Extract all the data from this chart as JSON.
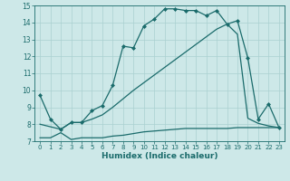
{
  "xlabel": "Humidex (Indice chaleur)",
  "bg_color": "#cde8e8",
  "line_color": "#1a6b6b",
  "grid_color": "#aad0d0",
  "xlim": [
    -0.5,
    23.5
  ],
  "ylim": [
    7,
    15
  ],
  "yticks": [
    7,
    8,
    9,
    10,
    11,
    12,
    13,
    14,
    15
  ],
  "xticks": [
    0,
    1,
    2,
    3,
    4,
    5,
    6,
    7,
    8,
    9,
    10,
    11,
    12,
    13,
    14,
    15,
    16,
    17,
    18,
    19,
    20,
    21,
    22,
    23
  ],
  "series": [
    {
      "x": [
        0,
        1,
        2,
        3,
        4,
        5,
        6,
        7,
        8,
        9,
        10,
        11,
        12,
        13,
        14,
        15,
        16,
        17,
        18,
        19,
        20,
        21,
        22,
        23
      ],
      "y": [
        7.2,
        7.2,
        7.5,
        7.1,
        7.2,
        7.2,
        7.2,
        7.3,
        7.35,
        7.45,
        7.55,
        7.6,
        7.65,
        7.7,
        7.75,
        7.75,
        7.75,
        7.75,
        7.75,
        7.8,
        7.8,
        7.8,
        7.8,
        7.8
      ],
      "marker": false,
      "lw": 0.9
    },
    {
      "x": [
        0,
        1,
        2,
        3,
        4,
        5,
        6,
        7,
        8,
        9,
        10,
        11,
        12,
        13,
        14,
        15,
        16,
        17,
        18,
        19,
        20,
        21,
        22,
        23
      ],
      "y": [
        9.7,
        8.3,
        7.7,
        8.1,
        8.1,
        8.8,
        9.1,
        10.3,
        12.6,
        12.5,
        13.8,
        14.2,
        14.8,
        14.8,
        14.7,
        14.7,
        14.4,
        14.7,
        13.9,
        14.1,
        11.9,
        8.3,
        9.2,
        7.8
      ],
      "marker": true,
      "lw": 0.9
    },
    {
      "x": [
        0,
        2,
        3,
        4,
        5,
        6,
        7,
        8,
        9,
        10,
        11,
        12,
        13,
        14,
        15,
        16,
        17,
        18,
        19,
        20,
        21,
        22,
        23
      ],
      "y": [
        8.0,
        7.7,
        8.1,
        8.1,
        8.3,
        8.55,
        9.0,
        9.5,
        10.0,
        10.45,
        10.9,
        11.35,
        11.8,
        12.25,
        12.7,
        13.15,
        13.6,
        13.9,
        13.3,
        8.35,
        8.05,
        7.9,
        7.8
      ],
      "marker": false,
      "lw": 0.9
    }
  ]
}
